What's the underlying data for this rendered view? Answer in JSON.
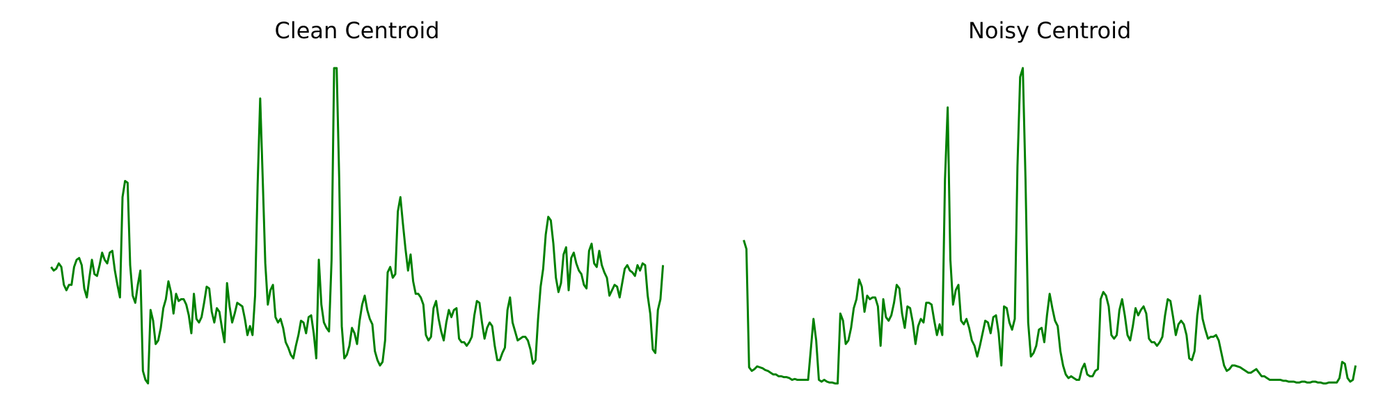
{
  "chart_data": [
    {
      "type": "line",
      "title": "Clean Centroid",
      "color": "#008000",
      "values": [
        132,
        128,
        130,
        136,
        132,
        112,
        106,
        112,
        112,
        132,
        140,
        142,
        134,
        108,
        98,
        120,
        140,
        124,
        122,
        134,
        148,
        140,
        136,
        148,
        150,
        128,
        112,
        98,
        210,
        228,
        226,
        134,
        100,
        92,
        112,
        128,
        16,
        6,
        2,
        84,
        72,
        46,
        50,
        64,
        86,
        96,
        116,
        104,
        80,
        102,
        94,
        96,
        96,
        90,
        78,
        58,
        102,
        74,
        70,
        76,
        92,
        110,
        108,
        82,
        70,
        86,
        82,
        64,
        48,
        114,
        88,
        70,
        80,
        92,
        90,
        88,
        74,
        56,
        66,
        56,
        100,
        224,
        320,
        230,
        136,
        90,
        106,
        112,
        76,
        70,
        74,
        64,
        48,
        42,
        34,
        30,
        44,
        56,
        72,
        70,
        58,
        76,
        78,
        58,
        30,
        140,
        90,
        70,
        64,
        60,
        140,
        354,
        354,
        230,
        66,
        30,
        34,
        44,
        64,
        58,
        46,
        72,
        90,
        100,
        84,
        74,
        68,
        38,
        28,
        22,
        26,
        50,
        126,
        132,
        120,
        124,
        194,
        210,
        180,
        152,
        128,
        146,
        116,
        102,
        102,
        98,
        90,
        56,
        50,
        54,
        86,
        94,
        74,
        60,
        50,
        70,
        84,
        76,
        84,
        86,
        52,
        48,
        48,
        44,
        48,
        54,
        78,
        94,
        92,
        70,
        52,
        64,
        70,
        66,
        44,
        28,
        28,
        36,
        42,
        84,
        98,
        70,
        60,
        50,
        52,
        54,
        54,
        50,
        40,
        24,
        28,
        74,
        110,
        130,
        168,
        188,
        184,
        158,
        120,
        104,
        114,
        146,
        154,
        106,
        142,
        148,
        136,
        128,
        124,
        112,
        108,
        150,
        158,
        136,
        132,
        150,
        134,
        126,
        120,
        100,
        106,
        112,
        110,
        98,
        114,
        130,
        134,
        128,
        126,
        122,
        134,
        128,
        136,
        134,
        100,
        80,
        40,
        36,
        84,
        96,
        134
      ]
    },
    {
      "type": "line",
      "title": "Noisy Centroid",
      "color": "#008000",
      "values": [
        162,
        152,
        20,
        16,
        18,
        21,
        20,
        19,
        17,
        16,
        14,
        12,
        12,
        10,
        10,
        9,
        9,
        8,
        6,
        7,
        6,
        6,
        6,
        6,
        6,
        40,
        74,
        50,
        6,
        4,
        6,
        4,
        3,
        3,
        2,
        2,
        80,
        72,
        46,
        50,
        64,
        86,
        96,
        118,
        110,
        82,
        100,
        96,
        98,
        98,
        88,
        44,
        96,
        76,
        72,
        78,
        92,
        112,
        108,
        80,
        64,
        88,
        86,
        70,
        46,
        66,
        74,
        70,
        92,
        92,
        90,
        72,
        56,
        68,
        56,
        230,
        310,
        140,
        90,
        106,
        112,
        72,
        68,
        74,
        64,
        50,
        44,
        32,
        44,
        58,
        72,
        70,
        58,
        76,
        78,
        58,
        22,
        88,
        86,
        70,
        62,
        74,
        244,
        344,
        354,
        230,
        70,
        32,
        36,
        44,
        62,
        64,
        48,
        78,
        102,
        86,
        72,
        66,
        38,
        22,
        12,
        8,
        10,
        8,
        6,
        6,
        18,
        24,
        12,
        10,
        10,
        16,
        18,
        96,
        104,
        100,
        88,
        56,
        52,
        56,
        84,
        96,
        78,
        56,
        50,
        66,
        86,
        78,
        84,
        88,
        80,
        52,
        48,
        48,
        44,
        48,
        54,
        78,
        96,
        94,
        76,
        56,
        68,
        72,
        68,
        56,
        30,
        28,
        38,
        78,
        100,
        74,
        62,
        52,
        54,
        54,
        56,
        50,
        36,
        22,
        16,
        18,
        22,
        22,
        21,
        20,
        18,
        16,
        14,
        14,
        16,
        18,
        14,
        10,
        10,
        8,
        6,
        6,
        6,
        6,
        6,
        5,
        5,
        4,
        4,
        4,
        3,
        3,
        4,
        4,
        3,
        3,
        4,
        4,
        3,
        3,
        2,
        2,
        3,
        3,
        3,
        3,
        8,
        26,
        24,
        8,
        4,
        6,
        22
      ]
    }
  ]
}
